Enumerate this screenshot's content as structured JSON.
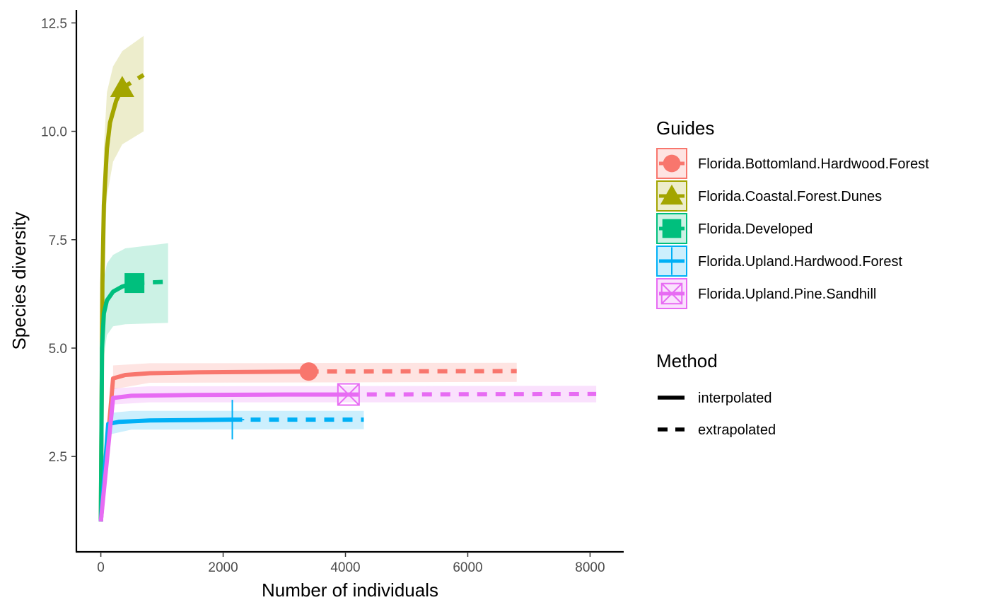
{
  "chart_data": {
    "type": "line",
    "title": "",
    "xlabel": "Number of individuals",
    "ylabel": "Species diversity",
    "xlim": [
      -400,
      8550
    ],
    "ylim": [
      0.3,
      12.8
    ],
    "x_ticks": [
      0,
      2000,
      4000,
      6000,
      8000
    ],
    "x_tick_labels": [
      "0",
      "2000",
      "4000",
      "6000",
      "8000"
    ],
    "y_ticks": [
      2.5,
      5.0,
      7.5,
      10.0,
      12.5
    ],
    "y_tick_labels": [
      "2.5",
      "5.0",
      "7.5",
      "10.0",
      "12.5"
    ],
    "grid": false,
    "legend_position": "right",
    "legends": [
      {
        "title": "Guides",
        "entries": [
          "Florida.Bottomland.Hardwood.Forest",
          "Florida.Coastal.Forest.Dunes",
          "Florida.Developed",
          "Florida.Upland.Hardwood.Forest",
          "Florida.Upland.Pine.Sandhill"
        ]
      },
      {
        "title": "Method",
        "entries": [
          "interpolated",
          "extrapolated"
        ]
      }
    ],
    "series": [
      {
        "name": "Florida.Bottomland.Hardwood.Forest",
        "color": "#F8766D",
        "shape": "circle",
        "observed": [
          3400,
          4.46
        ],
        "interpolated": [
          [
            0,
            1.0
          ],
          [
            200,
            4.3
          ],
          [
            400,
            4.38
          ],
          [
            800,
            4.42
          ],
          [
            1600,
            4.44
          ],
          [
            2400,
            4.45
          ],
          [
            3400,
            4.46
          ]
        ],
        "extrapolated": [
          [
            3400,
            4.46
          ],
          [
            6800,
            4.47
          ]
        ],
        "ci_upper": [
          [
            200,
            4.6
          ],
          [
            800,
            4.65
          ],
          [
            6800,
            4.66
          ]
        ],
        "ci_lower": [
          [
            200,
            4.05
          ],
          [
            800,
            4.2
          ],
          [
            6800,
            4.22
          ]
        ]
      },
      {
        "name": "Florida.Coastal.Forest.Dunes",
        "color": "#A3A500",
        "shape": "triangle",
        "observed": [
          350,
          11.0
        ],
        "interpolated": [
          [
            0,
            1.0
          ],
          [
            25,
            6.5
          ],
          [
            50,
            8.3
          ],
          [
            100,
            9.6
          ],
          [
            150,
            10.2
          ],
          [
            250,
            10.7
          ],
          [
            350,
            11.0
          ]
        ],
        "extrapolated": [
          [
            350,
            11.0
          ],
          [
            700,
            11.3
          ]
        ],
        "ci_upper": [
          [
            20,
            7.5
          ],
          [
            50,
            9.6
          ],
          [
            100,
            10.9
          ],
          [
            200,
            11.5
          ],
          [
            350,
            11.85
          ],
          [
            700,
            12.2
          ]
        ],
        "ci_lower": [
          [
            20,
            5.5
          ],
          [
            50,
            7.0
          ],
          [
            100,
            8.5
          ],
          [
            200,
            9.3
          ],
          [
            350,
            9.7
          ],
          [
            700,
            10.0
          ]
        ]
      },
      {
        "name": "Florida.Developed",
        "color": "#00BF7D",
        "shape": "square",
        "observed": [
          550,
          6.5
        ],
        "interpolated": [
          [
            0,
            1.0
          ],
          [
            20,
            5.0
          ],
          [
            50,
            5.8
          ],
          [
            100,
            6.1
          ],
          [
            200,
            6.3
          ],
          [
            350,
            6.42
          ],
          [
            550,
            6.5
          ]
        ],
        "extrapolated": [
          [
            550,
            6.5
          ],
          [
            1100,
            6.53
          ]
        ],
        "ci_upper": [
          [
            20,
            6.2
          ],
          [
            50,
            6.6
          ],
          [
            100,
            6.95
          ],
          [
            200,
            7.15
          ],
          [
            400,
            7.3
          ],
          [
            1100,
            7.42
          ]
        ],
        "ci_lower": [
          [
            20,
            4.0
          ],
          [
            50,
            4.8
          ],
          [
            100,
            5.3
          ],
          [
            200,
            5.5
          ],
          [
            400,
            5.55
          ],
          [
            1100,
            5.58
          ]
        ]
      },
      {
        "name": "Florida.Upland.Hardwood.Forest",
        "color": "#00B0F6",
        "shape": "cross",
        "observed": [
          2150,
          3.35
        ],
        "interpolated": [
          [
            0,
            1.0
          ],
          [
            120,
            3.25
          ],
          [
            300,
            3.3
          ],
          [
            800,
            3.33
          ],
          [
            1500,
            3.34
          ],
          [
            2150,
            3.35
          ]
        ],
        "extrapolated": [
          [
            2150,
            3.35
          ],
          [
            4300,
            3.35
          ]
        ],
        "ci_upper": [
          [
            120,
            3.5
          ],
          [
            500,
            3.55
          ],
          [
            4300,
            3.55
          ]
        ],
        "ci_lower": [
          [
            120,
            3.0
          ],
          [
            500,
            3.12
          ],
          [
            4300,
            3.13
          ]
        ]
      },
      {
        "name": "Florida.Upland.Pine.Sandhill",
        "color": "#E76BF3",
        "shape": "square-cross",
        "observed": [
          4050,
          3.93
        ],
        "interpolated": [
          [
            0,
            1.0
          ],
          [
            200,
            3.85
          ],
          [
            500,
            3.9
          ],
          [
            1500,
            3.92
          ],
          [
            3000,
            3.93
          ],
          [
            4050,
            3.93
          ]
        ],
        "extrapolated": [
          [
            4050,
            3.93
          ],
          [
            8100,
            3.94
          ]
        ],
        "ci_upper": [
          [
            200,
            4.07
          ],
          [
            800,
            4.12
          ],
          [
            8100,
            4.13
          ]
        ],
        "ci_lower": [
          [
            200,
            3.7
          ],
          [
            800,
            3.75
          ],
          [
            8100,
            3.75
          ]
        ]
      }
    ]
  }
}
